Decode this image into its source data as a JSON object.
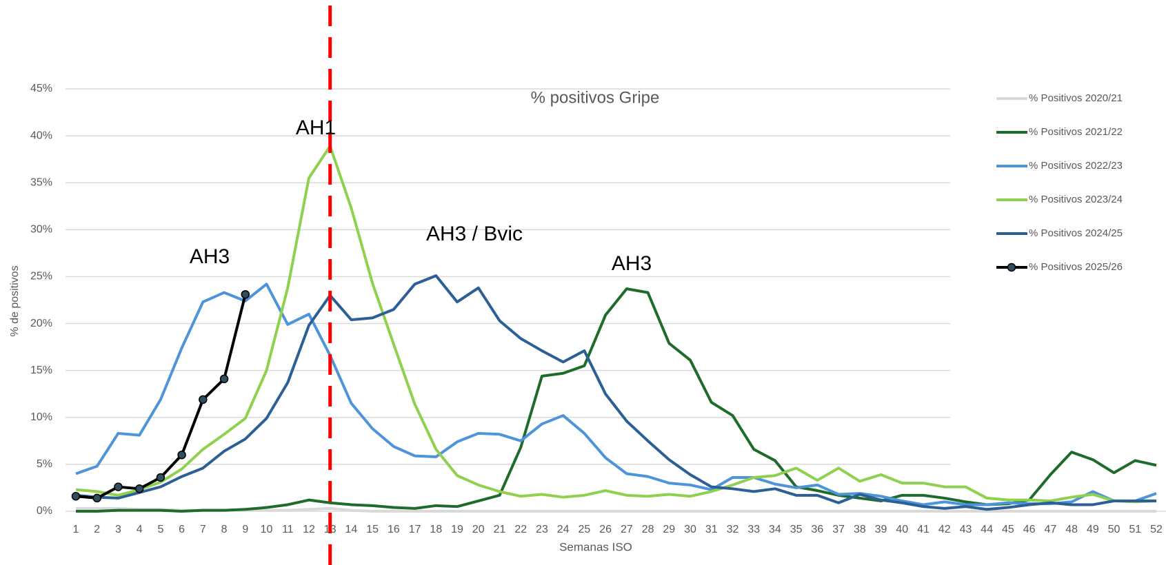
{
  "chart_data": {
    "type": "line",
    "title": "% positivos Gripe",
    "x_label": "Semanas ISO",
    "y_label": "% de positivos",
    "categories": [
      "1",
      "2",
      "3",
      "4",
      "5",
      "6",
      "7",
      "8",
      "9",
      "10",
      "11",
      "12",
      "13",
      "14",
      "15",
      "16",
      "17",
      "18",
      "19",
      "20",
      "21",
      "22",
      "23",
      "24",
      "25",
      "26",
      "27",
      "28",
      "29",
      "30",
      "31",
      "32",
      "33",
      "34",
      "35",
      "36",
      "37",
      "38",
      "39",
      "40",
      "41",
      "42",
      "43",
      "44",
      "45",
      "46",
      "47",
      "48",
      "49",
      "50",
      "51",
      "52"
    ],
    "series": [
      {
        "name": "% Positivos 2020/21",
        "color": "#d9d9d9",
        "values": [
          0.3,
          0.3,
          0.3,
          0.2,
          0.2,
          0.1,
          0.1,
          0.1,
          0.1,
          0.1,
          0.1,
          0.2,
          0.3,
          0.1,
          0,
          0,
          0,
          0,
          0,
          0,
          0,
          0,
          0,
          0,
          0,
          0,
          0,
          0,
          0,
          0,
          0,
          0,
          0,
          0,
          0,
          0,
          0,
          0,
          0,
          0,
          0,
          0,
          0,
          0,
          0,
          0,
          0,
          0,
          0,
          0,
          0,
          0
        ]
      },
      {
        "name": "% Positivos 2021/22",
        "color": "#1e6b2a",
        "values": [
          0,
          0,
          0.1,
          0.1,
          0.1,
          0,
          0.1,
          0.1,
          0.2,
          0.4,
          0.7,
          1.2,
          0.9,
          0.7,
          0.6,
          0.4,
          0.3,
          0.6,
          0.5,
          1.1,
          1.7,
          6.8,
          14.4,
          14.7,
          15.5,
          20.9,
          23.7,
          23.3,
          17.9,
          16.1,
          11.6,
          10.2,
          6.6,
          5.4,
          2.6,
          2.2,
          1.7,
          1.4,
          1.1,
          1.7,
          1.7,
          1.4,
          1.0,
          0.7,
          0.8,
          1.2,
          3.9,
          6.3,
          5.5,
          4.1,
          5.4,
          4.9
        ]
      },
      {
        "name": "% Positivos 2022/23",
        "color": "#4d94d9",
        "values": [
          4.0,
          4.8,
          8.3,
          8.1,
          11.9,
          17.4,
          22.3,
          23.3,
          22.4,
          24.2,
          19.9,
          21.0,
          16.6,
          11.5,
          8.8,
          6.9,
          5.9,
          5.8,
          7.4,
          8.3,
          8.2,
          7.5,
          9.3,
          10.2,
          8.3,
          5.7,
          4.0,
          3.7,
          3.0,
          2.8,
          2.3,
          3.6,
          3.6,
          2.9,
          2.5,
          2.8,
          1.8,
          1.9,
          1.6,
          1.1,
          0.7,
          1.0,
          0.7,
          0.7,
          0.9,
          0.8,
          0.8,
          1.0,
          2.1,
          1.1,
          1.1,
          1.9
        ]
      },
      {
        "name": "% Positivos 2023/24",
        "color": "#8fd14f",
        "values": [
          2.3,
          2.1,
          1.7,
          2.3,
          3.1,
          4.5,
          6.6,
          8.2,
          9.9,
          15.0,
          23.8,
          35.5,
          38.9,
          32.3,
          24.3,
          17.8,
          11.4,
          6.6,
          3.8,
          2.8,
          2.1,
          1.6,
          1.8,
          1.5,
          1.7,
          2.2,
          1.7,
          1.6,
          1.8,
          1.6,
          2.1,
          2.8,
          3.6,
          3.8,
          4.6,
          3.3,
          4.6,
          3.2,
          3.9,
          3.0,
          3.0,
          2.6,
          2.6,
          1.4,
          1.2,
          1.2,
          1.1,
          1.5,
          1.8,
          1.1,
          1.0,
          1.1
        ]
      },
      {
        "name": "% Positivos 2024/25",
        "color": "#2c5f95",
        "values": [
          1.7,
          1.5,
          1.4,
          2.0,
          2.6,
          3.7,
          4.6,
          6.4,
          7.7,
          9.9,
          13.7,
          19.8,
          23.0,
          20.4,
          20.6,
          21.5,
          24.2,
          25.1,
          22.3,
          23.8,
          20.3,
          18.4,
          17.1,
          15.9,
          17.1,
          12.5,
          9.6,
          7.5,
          5.5,
          3.9,
          2.6,
          2.4,
          2.1,
          2.4,
          1.7,
          1.7,
          0.9,
          1.8,
          1.2,
          0.9,
          0.5,
          0.3,
          0.5,
          0.2,
          0.4,
          0.7,
          0.9,
          0.7,
          0.7,
          1.1,
          1.1,
          1.1
        ]
      },
      {
        "name": "% Positivos 2025/26",
        "color": "#000000",
        "marker_color": "#2f4f5f",
        "values": [
          1.6,
          1.4,
          2.6,
          2.4,
          3.6,
          6.0,
          11.9,
          14.1,
          23.1,
          null,
          null,
          null,
          null,
          null,
          null,
          null,
          null,
          null,
          null,
          null,
          null,
          null,
          null,
          null,
          null,
          null,
          null,
          null,
          null,
          null,
          null,
          null,
          null,
          null,
          null,
          null,
          null,
          null,
          null,
          null,
          null,
          null,
          null,
          null,
          null,
          null,
          null,
          null,
          null,
          null,
          null,
          null
        ]
      }
    ],
    "ylim": [
      0,
      45
    ],
    "yticks": [
      {
        "value": 0,
        "label": "0%"
      },
      {
        "value": 5,
        "label": "5%"
      },
      {
        "value": 10,
        "label": "10%"
      },
      {
        "value": 15,
        "label": "15%"
      },
      {
        "value": 20,
        "label": "20%"
      },
      {
        "value": 25,
        "label": "25%"
      },
      {
        "value": 30,
        "label": "30%"
      },
      {
        "value": 35,
        "label": "35%"
      },
      {
        "value": 40,
        "label": "40%"
      },
      {
        "value": 45,
        "label": "45%"
      }
    ],
    "grid": true,
    "legend": "right",
    "reference_line": {
      "category": "13",
      "color": "#ff0000",
      "style": "dashed"
    },
    "annotations": [
      "AH1",
      "AH3",
      "AH3 / Bvic",
      "AH3"
    ]
  }
}
